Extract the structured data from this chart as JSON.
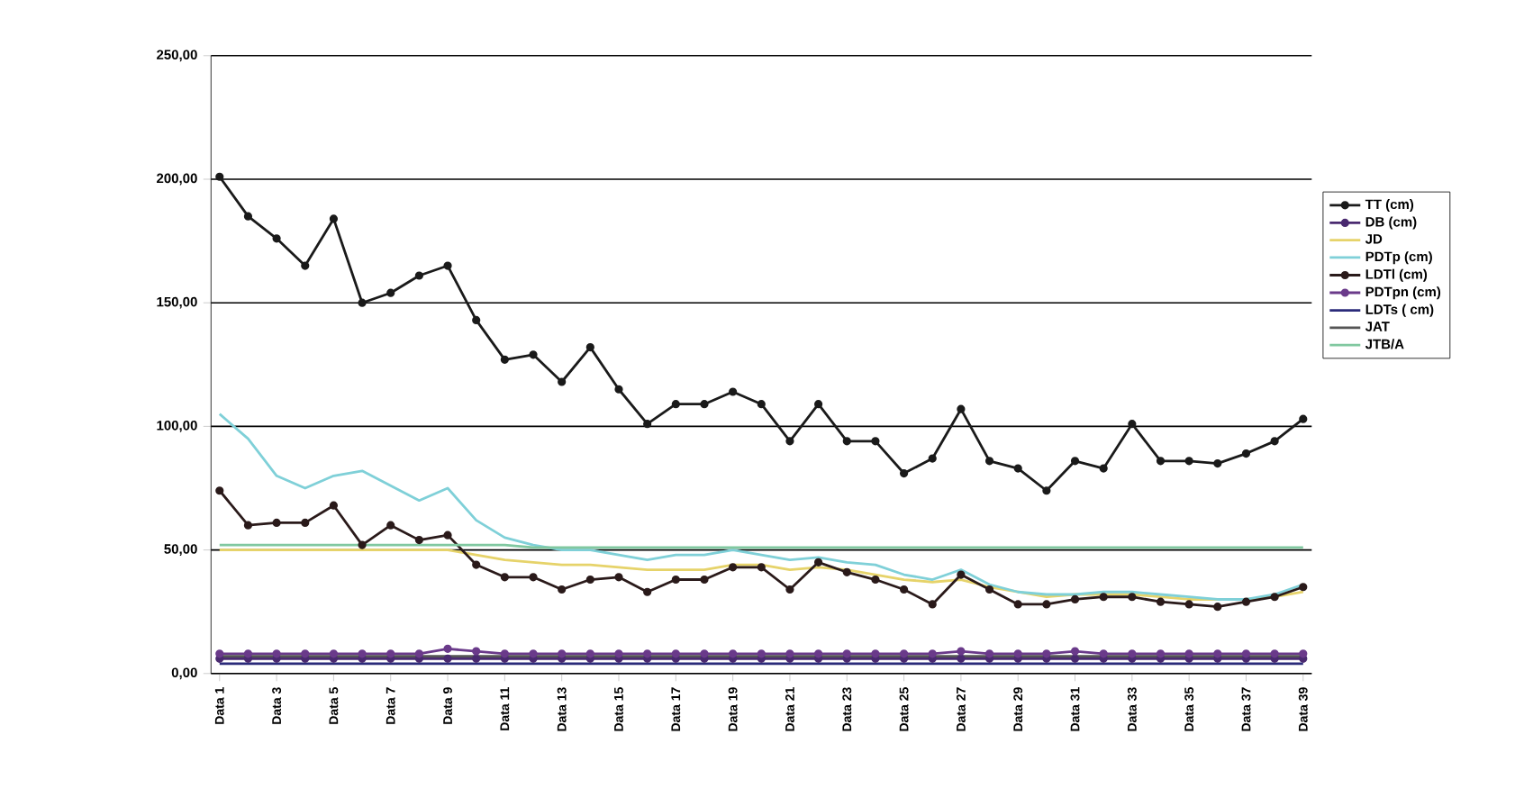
{
  "chart_data": {
    "type": "line",
    "categories": [
      "Data 1",
      null,
      "Data 3",
      null,
      "Data 5",
      null,
      "Data 7",
      null,
      "Data 9",
      null,
      "Data 11",
      null,
      "Data 13",
      null,
      "Data 15",
      null,
      "Data 17",
      null,
      "Data 19",
      null,
      "Data 21",
      null,
      "Data 23",
      null,
      "Data 25",
      null,
      "Data 27",
      null,
      "Data 29",
      null,
      "Data 31",
      null,
      "Data 33",
      null,
      "Data 35",
      null,
      "Data 37",
      null,
      "Data 39"
    ],
    "series": [
      {
        "name": "TT (cm)",
        "color": "#1a1a1a",
        "marker": "circle",
        "values": [
          201,
          185,
          176,
          165,
          184,
          150,
          154,
          161,
          165,
          143,
          127,
          129,
          118,
          132,
          115,
          101,
          109,
          109,
          114,
          109,
          94,
          109,
          94,
          94,
          81,
          87,
          107,
          86,
          83,
          74,
          86,
          83,
          101,
          86,
          86,
          85,
          89,
          94,
          103
        ]
      },
      {
        "name": "DB (cm)",
        "color": "#4a2a70",
        "marker": "circle",
        "values": [
          6,
          6,
          6,
          6,
          6,
          6,
          6,
          6,
          6,
          6,
          6,
          6,
          6,
          6,
          6,
          6,
          6,
          6,
          6,
          6,
          6,
          6,
          6,
          6,
          6,
          6,
          6,
          6,
          6,
          6,
          6,
          6,
          6,
          6,
          6,
          6,
          6,
          6,
          6
        ]
      },
      {
        "name": "JD",
        "color": "#e6d36a",
        "marker": "none",
        "values": [
          50,
          50,
          50,
          50,
          50,
          50,
          50,
          50,
          50,
          48,
          46,
          45,
          44,
          44,
          43,
          42,
          42,
          42,
          44,
          44,
          42,
          43,
          42,
          40,
          38,
          37,
          38,
          35,
          33,
          31,
          32,
          32,
          32,
          31,
          30,
          30,
          30,
          31,
          33
        ]
      },
      {
        "name": "PDTp (cm)",
        "color": "#7fd0d8",
        "marker": "none",
        "values": [
          105,
          95,
          80,
          75,
          80,
          82,
          76,
          70,
          75,
          62,
          55,
          52,
          50,
          50,
          48,
          46,
          48,
          48,
          50,
          48,
          46,
          47,
          45,
          44,
          40,
          38,
          42,
          36,
          33,
          32,
          32,
          33,
          33,
          32,
          31,
          30,
          30,
          32,
          36
        ]
      },
      {
        "name": "LDTl (cm)",
        "color": "#2a1a1a",
        "marker": "circle",
        "values": [
          74,
          60,
          61,
          61,
          68,
          52,
          60,
          54,
          56,
          44,
          39,
          39,
          34,
          38,
          39,
          33,
          38,
          38,
          43,
          43,
          34,
          45,
          41,
          38,
          34,
          28,
          40,
          34,
          28,
          28,
          30,
          31,
          31,
          29,
          28,
          27,
          29,
          31,
          35
        ]
      },
      {
        "name": "PDTpn (cm)",
        "color": "#6a3a8a",
        "marker": "circle",
        "values": [
          8,
          8,
          8,
          8,
          8,
          8,
          8,
          8,
          10,
          9,
          8,
          8,
          8,
          8,
          8,
          8,
          8,
          8,
          8,
          8,
          8,
          8,
          8,
          8,
          8,
          8,
          9,
          8,
          8,
          8,
          9,
          8,
          8,
          8,
          8,
          8,
          8,
          8,
          8
        ]
      },
      {
        "name": "LDTs ( cm)",
        "color": "#2b2b7a",
        "marker": "none",
        "values": [
          4,
          4,
          4,
          4,
          4,
          4,
          4,
          4,
          4,
          4,
          4,
          4,
          4,
          4,
          4,
          4,
          4,
          4,
          4,
          4,
          4,
          4,
          4,
          4,
          4,
          4,
          4,
          4,
          4,
          4,
          4,
          4,
          4,
          4,
          4,
          4,
          4,
          4,
          4
        ]
      },
      {
        "name": "JAT",
        "color": "#555555",
        "marker": "none",
        "values": [
          7,
          7,
          7,
          7,
          7,
          7,
          7,
          7,
          7,
          7,
          7,
          7,
          7,
          7,
          7,
          7,
          7,
          7,
          7,
          7,
          7,
          7,
          7,
          7,
          7,
          7,
          7,
          7,
          7,
          7,
          7,
          7,
          7,
          7,
          7,
          7,
          7,
          7,
          7
        ]
      },
      {
        "name": "JTB/A",
        "color": "#80c8a0",
        "marker": "none",
        "values": [
          52,
          52,
          52,
          52,
          52,
          52,
          52,
          52,
          52,
          52,
          52,
          51,
          51,
          51,
          51,
          51,
          51,
          51,
          51,
          51,
          51,
          51,
          51,
          51,
          51,
          51,
          51,
          51,
          51,
          51,
          51,
          51,
          51,
          51,
          51,
          51,
          51,
          51,
          51
        ]
      }
    ],
    "ylim": [
      0,
      250
    ],
    "yticks": [
      {
        "value": 0,
        "label": "0,00"
      },
      {
        "value": 50,
        "label": "50,00"
      },
      {
        "value": 100,
        "label": "100,00"
      },
      {
        "value": 150,
        "label": "150,00"
      },
      {
        "value": 200,
        "label": "200,00"
      },
      {
        "value": 250,
        "label": "250,00"
      }
    ],
    "grid": "y",
    "legend": "right"
  }
}
